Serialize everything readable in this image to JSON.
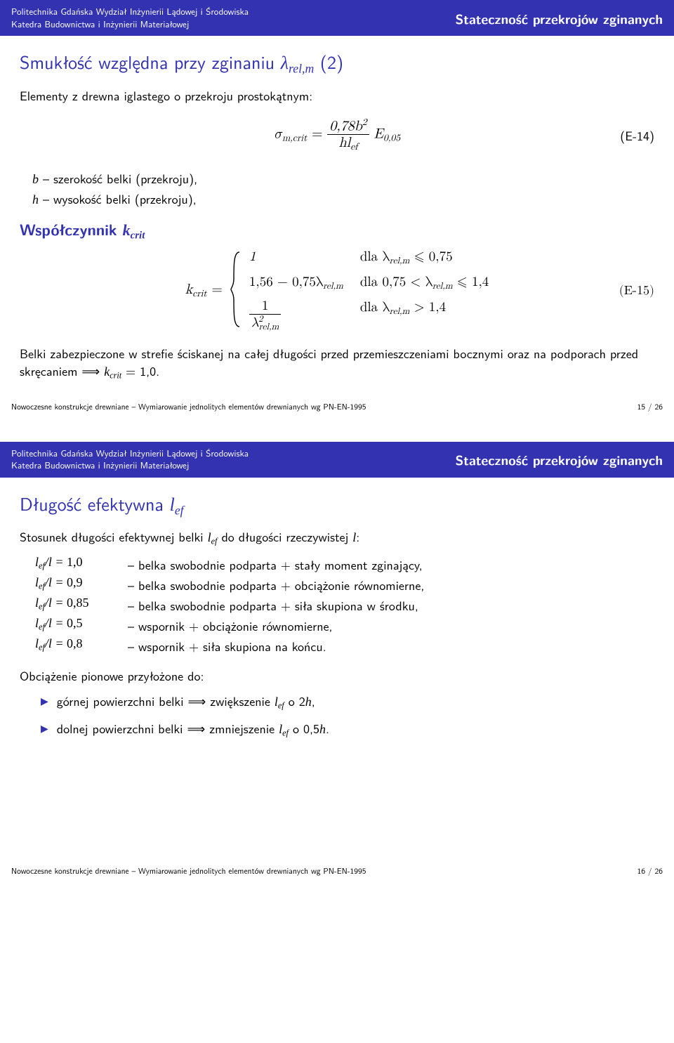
{
  "header": {
    "left_line1": "Politechnika Gdańska Wydział Inżynierii Lądowej i Środowiska",
    "left_line2": "Katedra Budownictwa i Inżynierii Materiałowej",
    "right": "Stateczność przekrojów zginanych"
  },
  "slide1": {
    "title_prefix": "Smukłość względna przy zginaniu ",
    "title_suffix": " (2)",
    "subtitle": "Elementy z drewna iglastego o przekroju prostokątnym:",
    "eq14": {
      "lhs": "σ",
      "lhs_sub": "m,crit",
      "num": "0,78b",
      "num_sup": "2",
      "den_h": "hl",
      "den_sub": "ef",
      "rhs": "E",
      "rhs_sub": "0,05",
      "label": "(E-14)"
    },
    "defs": {
      "b_sym": "b",
      "b_txt": " – szerokość belki (przekroju),",
      "h_sym": "h",
      "h_txt": " – wysokość belki (przekroju),"
    },
    "subsection": "Współczynnik ",
    "subsection_sym": "k",
    "subsection_sub": "crit",
    "kcrit": {
      "lhs_k": "k",
      "lhs_sub": "crit",
      "eq": " = ",
      "case1_val": "1",
      "case1_cond_pre": "dla λ",
      "case1_cond_sub": "rel,m",
      "case1_cond_post": " ⩽ 0,75",
      "case2_val_pre": "1,56 − 0,75λ",
      "case2_val_sub": "rel,m",
      "case2_cond_pre": "dla 0,75 < λ",
      "case2_cond_sub": "rel,m",
      "case2_cond_post": " ⩽ 1,4",
      "case3_num": "1",
      "case3_den_pre": "λ",
      "case3_den_sup": "2",
      "case3_den_sub": "rel,m",
      "case3_cond_pre": "dla λ",
      "case3_cond_sub": "rel,m",
      "case3_cond_post": " > 1,4",
      "label": "(E-15)"
    },
    "note_pre": "Belki zabezpieczone w strefie ściskanej na całej długości przed przemieszczeniami bocznymi oraz na podporach przed skręcaniem ⟹ ",
    "note_sym": "k",
    "note_sub": "crit",
    "note_post": " = 1,0.",
    "footer_left": "Nowoczesne konstrukcje drewniane – Wymiarowanie jednolitych elementów drewnianych wg PN-EN-1995",
    "footer_right": "15 / 26"
  },
  "slide2": {
    "title_prefix": "Długość efektywna ",
    "title_sym": "l",
    "title_sub": "ef",
    "intro_pre": "Stosunek długości efektywnej belki ",
    "intro_sym1": "l",
    "intro_sub1": "ef",
    "intro_mid": " do długości rzeczywistej ",
    "intro_sym2": "l",
    "intro_post": ":",
    "ratios": [
      {
        "val": "1,0",
        "desc": "belka swobodnie podparta + stały moment zginający,"
      },
      {
        "val": "0,9",
        "desc": "belka swobodnie podparta + obciążonie równomierne,"
      },
      {
        "val": "0,85",
        "desc": "belka swobodnie podparta + siła skupiona w środku,"
      },
      {
        "val": "0,5",
        "desc": "wspornik + obciążonie równomierne,"
      },
      {
        "val": "0,8",
        "desc": "wspornik + siła skupiona na końcu."
      }
    ],
    "ratio_lhs_l": "l",
    "ratio_lhs_sub": "ef",
    "ratio_lhs_div": "/l = ",
    "ratio_dash": " – ",
    "load_intro": "Obciążenie pionowe przyłożone do:",
    "bullets": [
      {
        "pre": "górnej powierzchni belki ⟹ zwiększenie ",
        "sym": "l",
        "sub": "ef",
        "mid": " o 2",
        "sym2": "h",
        "post": ","
      },
      {
        "pre": "dolnej powierzchni belki ⟹ zmniejszenie ",
        "sym": "l",
        "sub": "ef",
        "mid": " o 0,5",
        "sym2": "h",
        "post": "."
      }
    ],
    "footer_left": "Nowoczesne konstrukcje drewniane – Wymiarowanie jednolitych elementów drewnianych wg PN-EN-1995",
    "footer_right": "16 / 26"
  }
}
